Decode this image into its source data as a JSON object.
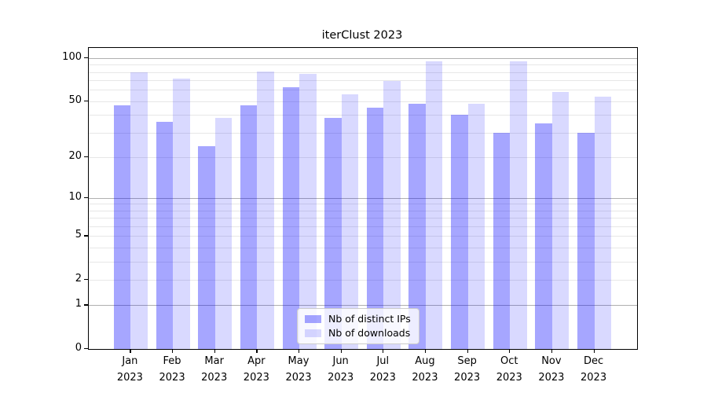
{
  "chart_data": {
    "type": "bar",
    "title": "iterClust 2023",
    "categories": [
      "Jan",
      "Feb",
      "Mar",
      "Apr",
      "May",
      "Jun",
      "Jul",
      "Aug",
      "Sep",
      "Oct",
      "Nov",
      "Dec"
    ],
    "year": "2023",
    "series": [
      {
        "name": "Nb of distinct IPs",
        "color": "rgba(0,0,255,0.35)",
        "color_hex": "#a6a6ff",
        "values": [
          47,
          36,
          24,
          47,
          63,
          38,
          45,
          48,
          40,
          30,
          35,
          30
        ]
      },
      {
        "name": "Nb of downloads",
        "color": "rgba(0,0,255,0.15)",
        "color_hex": "#d9d9ff",
        "values": [
          80,
          72,
          38,
          81,
          78,
          56,
          69,
          95,
          48,
          95,
          58,
          54
        ]
      }
    ],
    "yscale": "log1p",
    "ylim": [
      0,
      117
    ],
    "y_ticks": [
      0,
      1,
      2,
      5,
      10,
      20,
      50,
      100
    ],
    "y_major_gridlines": [
      1,
      10,
      100
    ],
    "y_minor_gridlines": [
      2,
      3,
      4,
      5,
      6,
      7,
      8,
      9,
      20,
      30,
      40,
      50,
      60,
      70,
      80,
      90
    ],
    "grid": "on",
    "legend": {
      "position": "lower center"
    },
    "colors": {
      "spine": "#000000",
      "major_grid": "#b0b0b0",
      "minor_grid": "#e7e7e7"
    }
  }
}
